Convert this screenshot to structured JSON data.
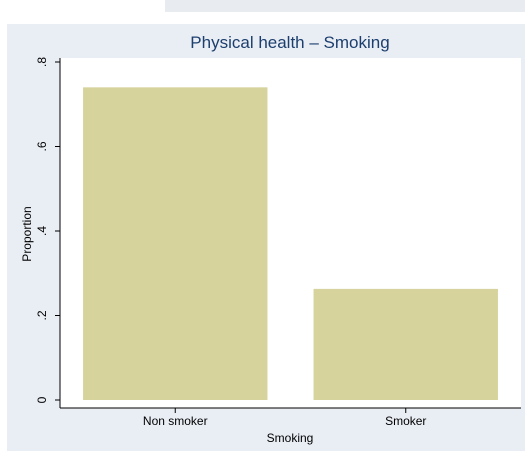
{
  "chart_data": {
    "type": "bar",
    "title": "Physical health – Smoking",
    "xlabel": "Smoking",
    "ylabel": "Proportion",
    "categories": [
      "Non smoker",
      "Smoker"
    ],
    "values": [
      0.74,
      0.263
    ],
    "yticks": [
      0,
      0.2,
      0.4,
      0.6,
      0.8
    ],
    "ytick_labels": [
      "0",
      ".2",
      ".4",
      ".6",
      ".8"
    ],
    "ylim": [
      0,
      0.8
    ],
    "grid": false,
    "colors": {
      "bar": "#d6d39c",
      "plot_background": "#ffffff",
      "graph_background": "#e9edf4",
      "title": "#1c3f6e"
    }
  }
}
